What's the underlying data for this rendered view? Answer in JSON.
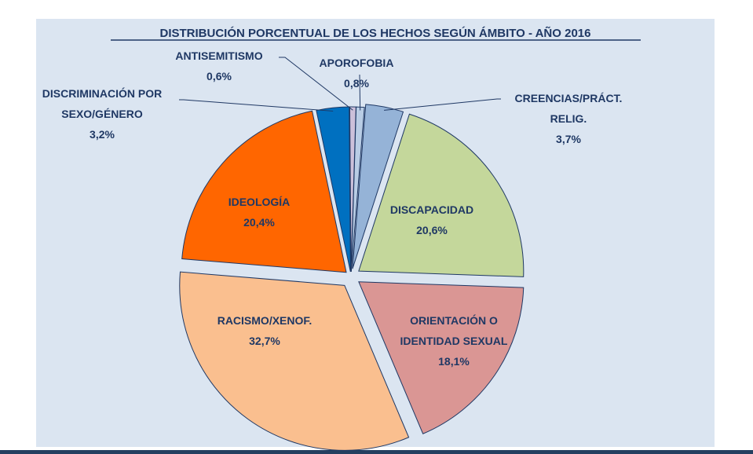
{
  "chart_data": {
    "type": "pie",
    "title": "DISTRIBUCIÓN PORCENTUAL DE LOS HECHOS SEGÚN ÁMBITO - AÑO 2016",
    "slices": [
      {
        "label": [
          "APOROFOBIA"
        ],
        "value_label": "0,8%",
        "value": 0.8,
        "color": "#b9cde5"
      },
      {
        "label": [
          "CREENCIAS/PRÁCT.",
          "RELIG."
        ],
        "value_label": "3,7%",
        "value": 3.7,
        "color": "#95b3d7"
      },
      {
        "label": [
          "DISCAPACIDAD"
        ],
        "value_label": "20,6%",
        "value": 20.6,
        "color": "#c4d79b"
      },
      {
        "label": [
          "ORIENTACIÓN O",
          "IDENTIDAD SEXUAL"
        ],
        "value_label": "18,1%",
        "value": 18.1,
        "color": "#da9694"
      },
      {
        "label": [
          "RACISMO/XENOF."
        ],
        "value_label": "32,7%",
        "value": 32.7,
        "color": "#fabf8f"
      },
      {
        "label": [
          "IDEOLOGÍA"
        ],
        "value_label": "20,4%",
        "value": 20.4,
        "color": "#ff6600"
      },
      {
        "label": [
          "DISCRIMINACIÓN POR",
          "SEXO/GÉNERO"
        ],
        "value_label": "3,2%",
        "value": 3.2,
        "color": "#0070c0"
      },
      {
        "label": [
          "ANTISEMITISMO"
        ],
        "value_label": "0,6%",
        "value": 0.6,
        "color": "#ccc0da"
      }
    ]
  }
}
